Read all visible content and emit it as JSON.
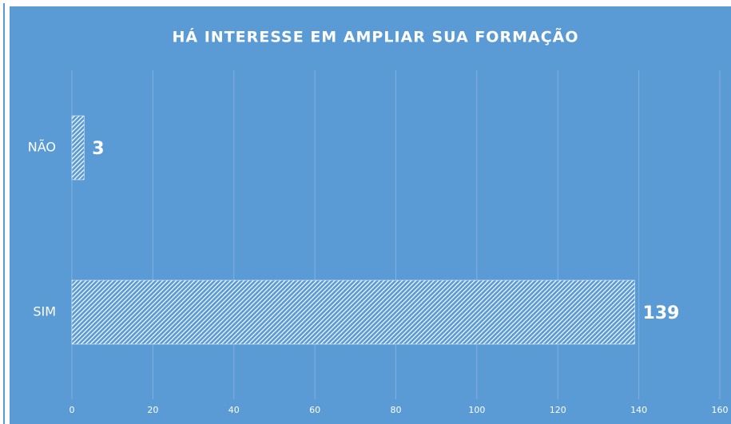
{
  "chart_data": {
    "type": "bar",
    "orientation": "horizontal",
    "title": "HÁ INTERESSE EM AMPLIAR SUA FORMAÇÃO",
    "categories": [
      "NÃO",
      "SIM"
    ],
    "values": [
      3,
      139
    ],
    "color": "#ffffff",
    "xlim": [
      0,
      160
    ],
    "xticks": [
      0,
      20,
      40,
      60,
      80,
      100,
      120,
      140,
      160
    ],
    "grid": true
  }
}
